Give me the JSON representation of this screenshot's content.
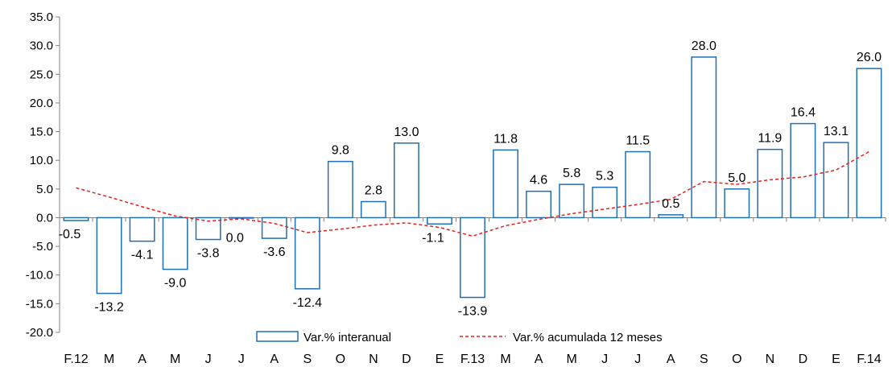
{
  "chart_data": {
    "type": "bar",
    "title": "",
    "xlabel": "",
    "ylabel": "",
    "ylim": [
      -20,
      35
    ],
    "yticks": [
      "35.0",
      "30.0",
      "25.0",
      "20.0",
      "15.0",
      "10.0",
      "5.0",
      "0.0",
      "-5.0",
      "-10.0",
      "-15.0",
      "-20.0"
    ],
    "grid": false,
    "legend_position": "bottom",
    "categories": [
      "F.12",
      "M",
      "A",
      "M",
      "J",
      "J",
      "A",
      "S",
      "O",
      "N",
      "D",
      "E",
      "F.13",
      "M",
      "A",
      "M",
      "J",
      "J",
      "A",
      "S",
      "O",
      "N",
      "D",
      "E",
      "F.14"
    ],
    "series": [
      {
        "name": "Var.% interanual",
        "kind": "bar",
        "color": "#1f6fb4",
        "values": [
          -0.5,
          -13.2,
          -4.1,
          -9.0,
          -3.8,
          0.0,
          -3.6,
          -12.4,
          9.8,
          2.8,
          13.0,
          -1.1,
          -13.9,
          11.8,
          4.6,
          5.8,
          5.3,
          11.5,
          0.5,
          28.0,
          5.0,
          11.9,
          16.4,
          13.1,
          26.0
        ],
        "labels": [
          "-0.5",
          "-13.2",
          "-4.1",
          "-9.0",
          "-3.8",
          "0.0",
          "-3.6",
          "-12.4",
          "9.8",
          "2.8",
          "13.0",
          "-1.1",
          "-13.9",
          "11.8",
          "4.6",
          "5.8",
          "5.3",
          "11.5",
          "0.5",
          "28.0",
          "5.0",
          "11.9",
          "16.4",
          "13.1",
          "26.0"
        ]
      },
      {
        "name": "Var.% acumulada 12 meses",
        "kind": "line",
        "style": "dashed",
        "color": "#e8201c",
        "values": [
          5.2,
          3.6,
          1.9,
          0.3,
          -0.6,
          -0.2,
          -1.0,
          -2.6,
          -2.0,
          -1.3,
          -0.9,
          -1.7,
          -3.2,
          -1.4,
          -0.3,
          0.7,
          1.5,
          2.3,
          3.2,
          6.3,
          5.8,
          6.6,
          7.1,
          8.3,
          11.5
        ]
      }
    ]
  }
}
